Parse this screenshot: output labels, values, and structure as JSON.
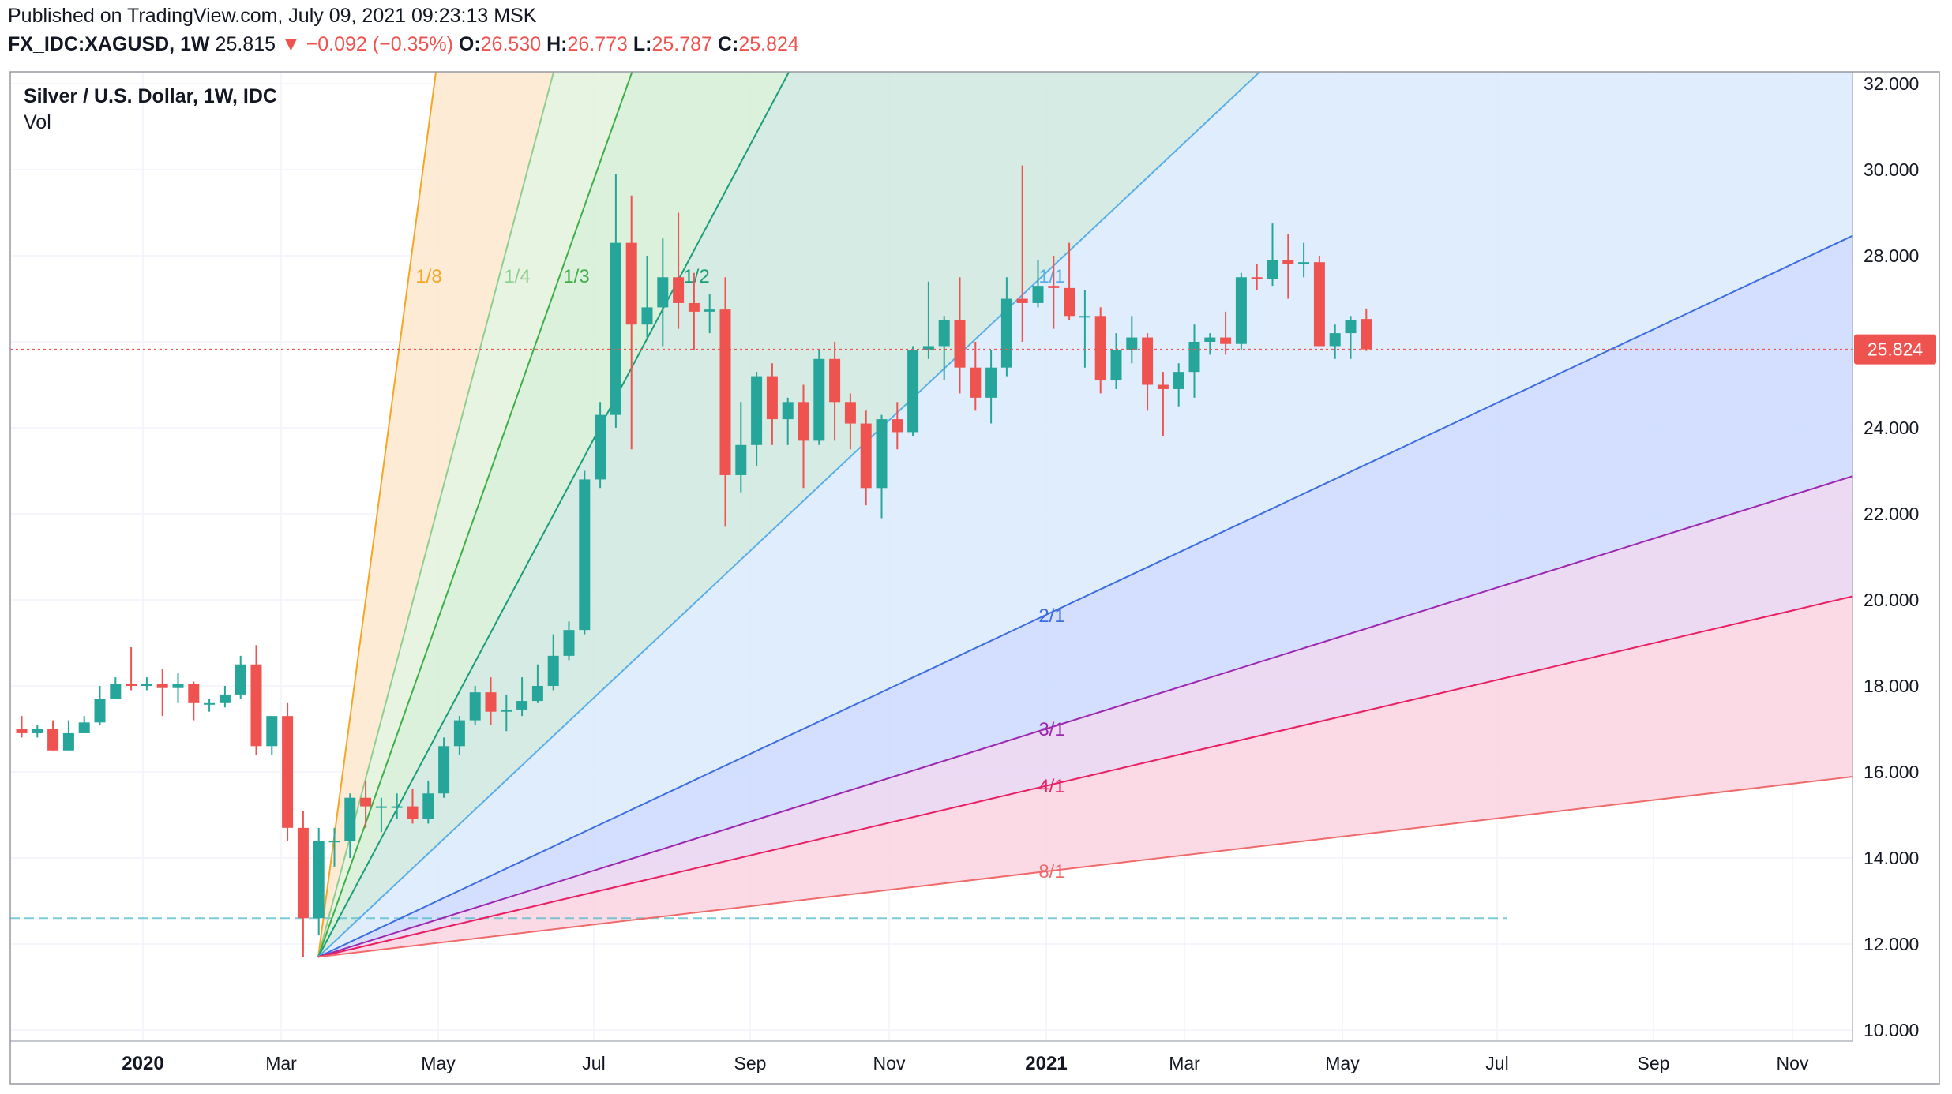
{
  "header": {
    "published": "Published on TradingView.com, July 09, 2021 09:23:13 MSK",
    "symbol": "FX_IDC:XAGUSD, 1W",
    "last": "25.815",
    "change_arrow": "▼",
    "change": "−0.092 (−0.35%)",
    "o_label": "O:",
    "o_value": "26.530",
    "h_label": "H:",
    "h_value": "26.773",
    "l_label": "L:",
    "l_value": "25.787",
    "c_label": "C:",
    "c_value": "25.824"
  },
  "legend": {
    "title": "Silver / U.S. Dollar, 1W, IDC",
    "indicator": "Vol"
  },
  "colors": {
    "up": "#26a69a",
    "down": "#ef5350",
    "price_line": "#ef5350",
    "low_line": "#45b6c4"
  },
  "chart_data": {
    "type": "candlestick",
    "timeframe": "1W",
    "x_axis": {
      "ticks": [
        "2020",
        "Mar",
        "May",
        "Jul",
        "Sep",
        "Nov",
        "2021",
        "Mar",
        "May",
        "Jul",
        "Sep",
        "Nov"
      ],
      "bold_ticks": [
        "2020",
        "2021"
      ]
    },
    "y_axis": {
      "ticks": [
        "32.000",
        "30.000",
        "28.000",
        "26.000",
        "24.000",
        "22.000",
        "20.000",
        "18.000",
        "16.000",
        "14.000",
        "12.000",
        "10.000"
      ],
      "range": [
        10,
        32
      ],
      "position": "right"
    },
    "last_price_label": "25.824",
    "horizontal_level": 12.6,
    "candles": [
      {
        "o": 17.0,
        "h": 17.3,
        "l": 16.8,
        "c": 16.9
      },
      {
        "o": 16.9,
        "h": 17.1,
        "l": 16.8,
        "c": 17.0
      },
      {
        "o": 17.0,
        "h": 17.2,
        "l": 16.5,
        "c": 16.5
      },
      {
        "o": 16.5,
        "h": 17.2,
        "l": 16.5,
        "c": 16.9
      },
      {
        "o": 16.9,
        "h": 17.3,
        "l": 16.9,
        "c": 17.15
      },
      {
        "o": 17.15,
        "h": 18.0,
        "l": 17.1,
        "c": 17.7
      },
      {
        "o": 17.7,
        "h": 18.2,
        "l": 17.7,
        "c": 18.05
      },
      {
        "o": 18.05,
        "h": 18.9,
        "l": 17.9,
        "c": 18.0
      },
      {
        "o": 18.0,
        "h": 18.2,
        "l": 17.9,
        "c": 18.05
      },
      {
        "o": 18.05,
        "h": 18.4,
        "l": 17.3,
        "c": 17.95
      },
      {
        "o": 17.95,
        "h": 18.3,
        "l": 17.6,
        "c": 18.05
      },
      {
        "o": 18.05,
        "h": 18.1,
        "l": 17.2,
        "c": 17.6
      },
      {
        "o": 17.6,
        "h": 17.7,
        "l": 17.4,
        "c": 17.6
      },
      {
        "o": 17.6,
        "h": 18.0,
        "l": 17.5,
        "c": 17.8
      },
      {
        "o": 17.8,
        "h": 18.7,
        "l": 17.7,
        "c": 18.5
      },
      {
        "o": 18.5,
        "h": 18.95,
        "l": 16.4,
        "c": 16.6
      },
      {
        "o": 16.6,
        "h": 17.3,
        "l": 16.4,
        "c": 17.3
      },
      {
        "o": 17.3,
        "h": 17.6,
        "l": 14.4,
        "c": 14.7
      },
      {
        "o": 14.7,
        "h": 15.1,
        "l": 11.7,
        "c": 12.6
      },
      {
        "o": 12.6,
        "h": 14.7,
        "l": 12.2,
        "c": 14.4
      },
      {
        "o": 14.4,
        "h": 14.7,
        "l": 13.8,
        "c": 14.4
      },
      {
        "o": 14.4,
        "h": 15.5,
        "l": 14.0,
        "c": 15.4
      },
      {
        "o": 15.4,
        "h": 15.8,
        "l": 14.7,
        "c": 15.2
      },
      {
        "o": 15.2,
        "h": 15.4,
        "l": 14.6,
        "c": 15.2
      },
      {
        "o": 15.2,
        "h": 15.5,
        "l": 14.9,
        "c": 15.2
      },
      {
        "o": 15.2,
        "h": 15.6,
        "l": 14.8,
        "c": 14.9
      },
      {
        "o": 14.9,
        "h": 15.8,
        "l": 14.8,
        "c": 15.5
      },
      {
        "o": 15.5,
        "h": 16.8,
        "l": 15.4,
        "c": 16.6
      },
      {
        "o": 16.6,
        "h": 17.3,
        "l": 16.4,
        "c": 17.2
      },
      {
        "o": 17.2,
        "h": 18.0,
        "l": 17.1,
        "c": 17.85
      },
      {
        "o": 17.85,
        "h": 18.2,
        "l": 17.1,
        "c": 17.4
      },
      {
        "o": 17.4,
        "h": 17.8,
        "l": 16.95,
        "c": 17.45
      },
      {
        "o": 17.45,
        "h": 18.2,
        "l": 17.3,
        "c": 17.65
      },
      {
        "o": 17.65,
        "h": 18.5,
        "l": 17.6,
        "c": 18.0
      },
      {
        "o": 18.0,
        "h": 19.2,
        "l": 17.9,
        "c": 18.7
      },
      {
        "o": 18.7,
        "h": 19.5,
        "l": 18.6,
        "c": 19.3
      },
      {
        "o": 19.3,
        "h": 23.0,
        "l": 19.2,
        "c": 22.8
      },
      {
        "o": 22.8,
        "h": 24.6,
        "l": 22.6,
        "c": 24.3
      },
      {
        "o": 24.3,
        "h": 29.9,
        "l": 24.0,
        "c": 28.3
      },
      {
        "o": 28.3,
        "h": 29.4,
        "l": 23.5,
        "c": 26.4
      },
      {
        "o": 26.4,
        "h": 28.0,
        "l": 26.1,
        "c": 26.8
      },
      {
        "o": 26.8,
        "h": 28.4,
        "l": 25.9,
        "c": 27.5
      },
      {
        "o": 27.5,
        "h": 29.0,
        "l": 26.3,
        "c": 26.9
      },
      {
        "o": 26.9,
        "h": 27.6,
        "l": 25.8,
        "c": 26.7
      },
      {
        "o": 26.7,
        "h": 27.1,
        "l": 26.2,
        "c": 26.75
      },
      {
        "o": 26.75,
        "h": 27.5,
        "l": 21.7,
        "c": 22.9
      },
      {
        "o": 22.9,
        "h": 24.6,
        "l": 22.5,
        "c": 23.6
      },
      {
        "o": 23.6,
        "h": 25.3,
        "l": 23.1,
        "c": 25.2
      },
      {
        "o": 25.2,
        "h": 25.5,
        "l": 23.6,
        "c": 24.2
      },
      {
        "o": 24.2,
        "h": 24.7,
        "l": 23.6,
        "c": 24.6
      },
      {
        "o": 24.6,
        "h": 25.0,
        "l": 22.6,
        "c": 23.7
      },
      {
        "o": 23.7,
        "h": 25.8,
        "l": 23.6,
        "c": 25.6
      },
      {
        "o": 25.6,
        "h": 26.0,
        "l": 23.7,
        "c": 24.6
      },
      {
        "o": 24.6,
        "h": 24.8,
        "l": 23.5,
        "c": 24.1
      },
      {
        "o": 24.1,
        "h": 24.4,
        "l": 22.2,
        "c": 22.6
      },
      {
        "o": 22.6,
        "h": 24.3,
        "l": 21.9,
        "c": 24.2
      },
      {
        "o": 24.2,
        "h": 24.6,
        "l": 23.5,
        "c": 23.9
      },
      {
        "o": 23.9,
        "h": 25.9,
        "l": 23.8,
        "c": 25.8
      },
      {
        "o": 25.8,
        "h": 27.4,
        "l": 25.6,
        "c": 25.9
      },
      {
        "o": 25.9,
        "h": 26.6,
        "l": 25.1,
        "c": 26.5
      },
      {
        "o": 26.5,
        "h": 27.5,
        "l": 24.8,
        "c": 25.4
      },
      {
        "o": 25.4,
        "h": 26.0,
        "l": 24.4,
        "c": 24.7
      },
      {
        "o": 24.7,
        "h": 25.8,
        "l": 24.1,
        "c": 25.4
      },
      {
        "o": 25.4,
        "h": 27.5,
        "l": 25.2,
        "c": 27.0
      },
      {
        "o": 27.0,
        "h": 30.1,
        "l": 26.0,
        "c": 26.9
      },
      {
        "o": 26.9,
        "h": 27.9,
        "l": 26.8,
        "c": 27.3
      },
      {
        "o": 27.3,
        "h": 28.0,
        "l": 26.3,
        "c": 27.25
      },
      {
        "o": 27.25,
        "h": 28.3,
        "l": 26.5,
        "c": 26.6
      },
      {
        "o": 26.6,
        "h": 27.2,
        "l": 25.4,
        "c": 26.6
      },
      {
        "o": 26.6,
        "h": 26.8,
        "l": 24.8,
        "c": 25.1
      },
      {
        "o": 25.1,
        "h": 26.2,
        "l": 24.9,
        "c": 25.8
      },
      {
        "o": 25.8,
        "h": 26.6,
        "l": 25.5,
        "c": 26.1
      },
      {
        "o": 26.1,
        "h": 26.2,
        "l": 24.4,
        "c": 25.0
      },
      {
        "o": 25.0,
        "h": 25.3,
        "l": 23.8,
        "c": 24.9
      },
      {
        "o": 24.9,
        "h": 25.5,
        "l": 24.5,
        "c": 25.3
      },
      {
        "o": 25.3,
        "h": 26.4,
        "l": 24.7,
        "c": 26.0
      },
      {
        "o": 26.0,
        "h": 26.2,
        "l": 25.7,
        "c": 26.1
      },
      {
        "o": 26.1,
        "h": 26.7,
        "l": 25.7,
        "c": 25.95
      },
      {
        "o": 25.95,
        "h": 27.6,
        "l": 25.8,
        "c": 27.5
      },
      {
        "o": 27.5,
        "h": 27.8,
        "l": 27.2,
        "c": 27.45
      },
      {
        "o": 27.45,
        "h": 28.75,
        "l": 27.3,
        "c": 27.9
      },
      {
        "o": 27.9,
        "h": 28.5,
        "l": 27.0,
        "c": 27.8
      },
      {
        "o": 27.8,
        "h": 28.3,
        "l": 27.5,
        "c": 27.85
      },
      {
        "o": 27.85,
        "h": 28.0,
        "l": 25.9,
        "c": 25.9
      },
      {
        "o": 25.9,
        "h": 26.4,
        "l": 25.6,
        "c": 26.2
      },
      {
        "o": 26.2,
        "h": 26.6,
        "l": 25.6,
        "c": 26.5
      },
      {
        "o": 26.53,
        "h": 26.773,
        "l": 25.787,
        "c": 25.824
      }
    ],
    "gann_fan": {
      "origin_price": 11.7,
      "lines": [
        {
          "label": "1/8",
          "color": "#f5a623",
          "fill": "#fde8cf",
          "slope": 8
        },
        {
          "label": "1/4",
          "color": "#8fce8f",
          "fill": "#e3f2dd",
          "slope": 4
        },
        {
          "label": "1/3",
          "color": "#3fae49",
          "fill": "#d6eed6",
          "slope": 3
        },
        {
          "label": "1/2",
          "color": "#1b9e77",
          "fill": "#cfe8de",
          "slope": 2
        },
        {
          "label": "1/1",
          "color": "#5aaee8",
          "fill": "#dbeafb",
          "slope": 1
        },
        {
          "label": "2/1",
          "color": "#3d6de0",
          "fill": "#ccd9ff",
          "slope": 0.5
        },
        {
          "label": "3/1",
          "color": "#9c27b0",
          "fill": "#e8d3f0",
          "slope": 0.3333
        },
        {
          "label": "4/1",
          "color": "#e91e63",
          "fill": "#fbd3e0",
          "slope": 0.25
        },
        {
          "label": "8/1",
          "color": "#ef6b6b",
          "fill": "#f8dede",
          "slope": 0.125
        }
      ]
    }
  }
}
